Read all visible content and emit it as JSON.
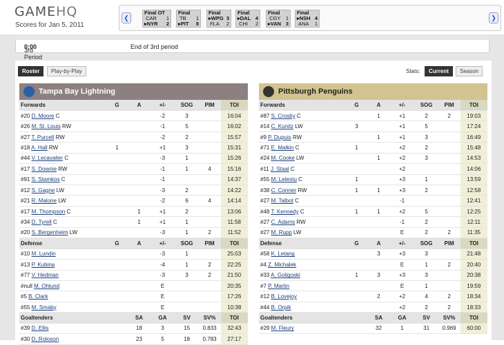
{
  "header": {
    "logo_a": "GAME",
    "logo_b": "HQ",
    "subtitle": "Scores for Jan 5, 2011"
  },
  "ticker": [
    {
      "status": "Final OT",
      "a": "CAR",
      "as": "1",
      "b": "NYR",
      "bs": "2",
      "arrow": "b"
    },
    {
      "status": "Final",
      "a": "TB",
      "as": "1",
      "b": "PIT",
      "bs": "8",
      "arrow": "b"
    },
    {
      "status": "Final",
      "a": "WPG",
      "as": "3",
      "b": "FLA",
      "bs": "2",
      "arrow": "a"
    },
    {
      "status": "Final",
      "a": "DAL",
      "as": "4",
      "b": "CHI",
      "bs": "2",
      "arrow": "a"
    },
    {
      "status": "Final",
      "a": "CGY",
      "as": "1",
      "b": "VAN",
      "bs": "3",
      "arrow": "b"
    },
    {
      "status": "Final",
      "a": "NSH",
      "as": "4",
      "b": "ANA",
      "bs": "1",
      "arrow": "a"
    }
  ],
  "period": {
    "label": "3rd Period",
    "time": "0:00",
    "status": "End of 3rd period"
  },
  "tabs": {
    "roster": "Roster",
    "pbp": "Play-by-Play"
  },
  "stats": {
    "label": "Stats:",
    "current": "Current",
    "season": "Season"
  },
  "colors": {
    "tb_header": "#8c8080",
    "pit_header": "#d2c390",
    "toi_bg": "#f0efd8"
  },
  "teams": [
    {
      "name": "Tampa Bay Lightning",
      "logo": "lightning-logo",
      "skater_cols": [
        "G",
        "A",
        "+/-",
        "SOG",
        "PIM",
        "TOI"
      ],
      "goalie_cols": [
        "SA",
        "GA",
        "SV",
        "SV%",
        "TOI"
      ],
      "forwards": [
        [
          "#20",
          "D. Moore",
          "C",
          "",
          "",
          "-2",
          "3",
          "",
          "16:04"
        ],
        [
          "#26",
          "M. St. Louis",
          "RW",
          "",
          "",
          "-1",
          "5",
          "",
          "16:02"
        ],
        [
          "#27",
          "T. Purcell",
          "RW",
          "",
          "",
          "-2",
          "2",
          "",
          "15:57"
        ],
        [
          "#18",
          "A. Hall",
          "RW",
          "1",
          "",
          "+1",
          "3",
          "",
          "15:31"
        ],
        [
          "#44",
          "V. Lecavalier",
          "C",
          "",
          "",
          "-3",
          "1",
          "",
          "15:26"
        ],
        [
          "#17",
          "S. Downie",
          "RW",
          "",
          "",
          "-1",
          "1",
          "4",
          "15:16"
        ],
        [
          "#91",
          "S. Stamkos",
          "C",
          "",
          "",
          "-1",
          "",
          "",
          "14:37"
        ],
        [
          "#12",
          "S. Gagne",
          "LW",
          "",
          "",
          "-3",
          "2",
          "",
          "14:22"
        ],
        [
          "#21",
          "R. Malone",
          "LW",
          "",
          "",
          "-2",
          "6",
          "4",
          "14:14"
        ],
        [
          "#17",
          "M. Thompson",
          "C",
          "",
          "1",
          "+1",
          "2",
          "",
          "13:06"
        ],
        [
          "#34",
          "D. Tyrell",
          "C",
          "",
          "1",
          "+1",
          "1",
          "",
          "11:58"
        ],
        [
          "#20",
          "S. Bergenheim",
          "LW",
          "",
          "",
          "-3",
          "1",
          "2",
          "11:52"
        ]
      ],
      "defense": [
        [
          "#10",
          "M. Lundin",
          "",
          "",
          "",
          "-3",
          "1",
          "",
          "25:03"
        ],
        [
          "#13",
          "P. Kubina",
          "",
          "",
          "",
          "-4",
          "1",
          "2",
          "22:25"
        ],
        [
          "#77",
          "V. Hedman",
          "",
          "",
          "",
          "-3",
          "3",
          "2",
          "21:50"
        ],
        [
          "#null",
          "M. Ohlund",
          "",
          "",
          "",
          "E",
          "",
          "",
          "20:35"
        ],
        [
          "#5",
          "B. Clark",
          "",
          "",
          "",
          "E",
          "",
          "",
          "17:26"
        ],
        [
          "#55",
          "M. Smaby",
          "",
          "",
          "",
          "E",
          "",
          "",
          "10:38"
        ]
      ],
      "goalies": [
        [
          "#39",
          "D. Ellis",
          "18",
          "3",
          "15",
          "0.833",
          "32:43"
        ],
        [
          "#30",
          "D. Roloson",
          "23",
          "5",
          "18",
          "0.783",
          "27:17"
        ]
      ]
    },
    {
      "name": "Pittsburgh Penguins",
      "logo": "penguin-logo",
      "skater_cols": [
        "G",
        "A",
        "+/-",
        "SOG",
        "PIM",
        "TOI"
      ],
      "goalie_cols": [
        "SA",
        "GA",
        "SV",
        "SV%",
        "TOI"
      ],
      "forwards": [
        [
          "#87",
          "S. Crosby",
          "C",
          "",
          "1",
          "+1",
          "2",
          "2",
          "19:03"
        ],
        [
          "#14",
          "C. Kunitz",
          "LW",
          "3",
          "",
          "+1",
          "5",
          "",
          "17:24"
        ],
        [
          "#9",
          "P. Dupuis",
          "RW",
          "",
          "1",
          "+1",
          "3",
          "",
          "16:49"
        ],
        [
          "#71",
          "E. Malkin",
          "C",
          "1",
          "",
          "+2",
          "2",
          "",
          "15:48"
        ],
        [
          "#24",
          "M. Cooke",
          "LW",
          "",
          "1",
          "+2",
          "3",
          "",
          "14:53"
        ],
        [
          "#11",
          "J. Staal",
          "C",
          "",
          "",
          "+2",
          "",
          "",
          "14:06"
        ],
        [
          "#55",
          "M. Letestu",
          "C",
          "1",
          "",
          "+3",
          "1",
          "",
          "13:59"
        ],
        [
          "#38",
          "C. Conner",
          "RW",
          "1",
          "1",
          "+3",
          "2",
          "",
          "12:58"
        ],
        [
          "#27",
          "M. Talbot",
          "C",
          "",
          "",
          "-1",
          "",
          "",
          "12:41"
        ],
        [
          "#48",
          "T. Kennedy",
          "C",
          "1",
          "1",
          "+2",
          "5",
          "",
          "12:25"
        ],
        [
          "#27",
          "C. Adams",
          "RW",
          "",
          "",
          "-1",
          "2",
          "",
          "12:11"
        ],
        [
          "#27",
          "M. Rupp",
          "LW",
          "",
          "",
          "E",
          "2",
          "2",
          "11:35"
        ]
      ],
      "defense": [
        [
          "#58",
          "K. Letang",
          "",
          "",
          "3",
          "+3",
          "3",
          "",
          "21:48"
        ],
        [
          "#4",
          "Z. Michalek",
          "",
          "",
          "",
          "E",
          "1",
          "2",
          "20:40"
        ],
        [
          "#33",
          "A. Goligoski",
          "",
          "1",
          "3",
          "+3",
          "3",
          "",
          "20:38"
        ],
        [
          "#7",
          "P. Martin",
          "",
          "",
          "",
          "E",
          "1",
          "",
          "19:59"
        ],
        [
          "#12",
          "B. Lovejoy",
          "",
          "",
          "2",
          "+2",
          "4",
          "2",
          "18:34"
        ],
        [
          "#44",
          "B. Orpik",
          "",
          "",
          "",
          "+2",
          "2",
          "2",
          "18:33"
        ]
      ],
      "goalies": [
        [
          "#29",
          "M. Fleury",
          "32",
          "1",
          "31",
          "0.969",
          "60:00"
        ]
      ]
    }
  ],
  "sections": {
    "forwards": "Forwards",
    "defense": "Defense",
    "goalies": "Goaltenders"
  }
}
